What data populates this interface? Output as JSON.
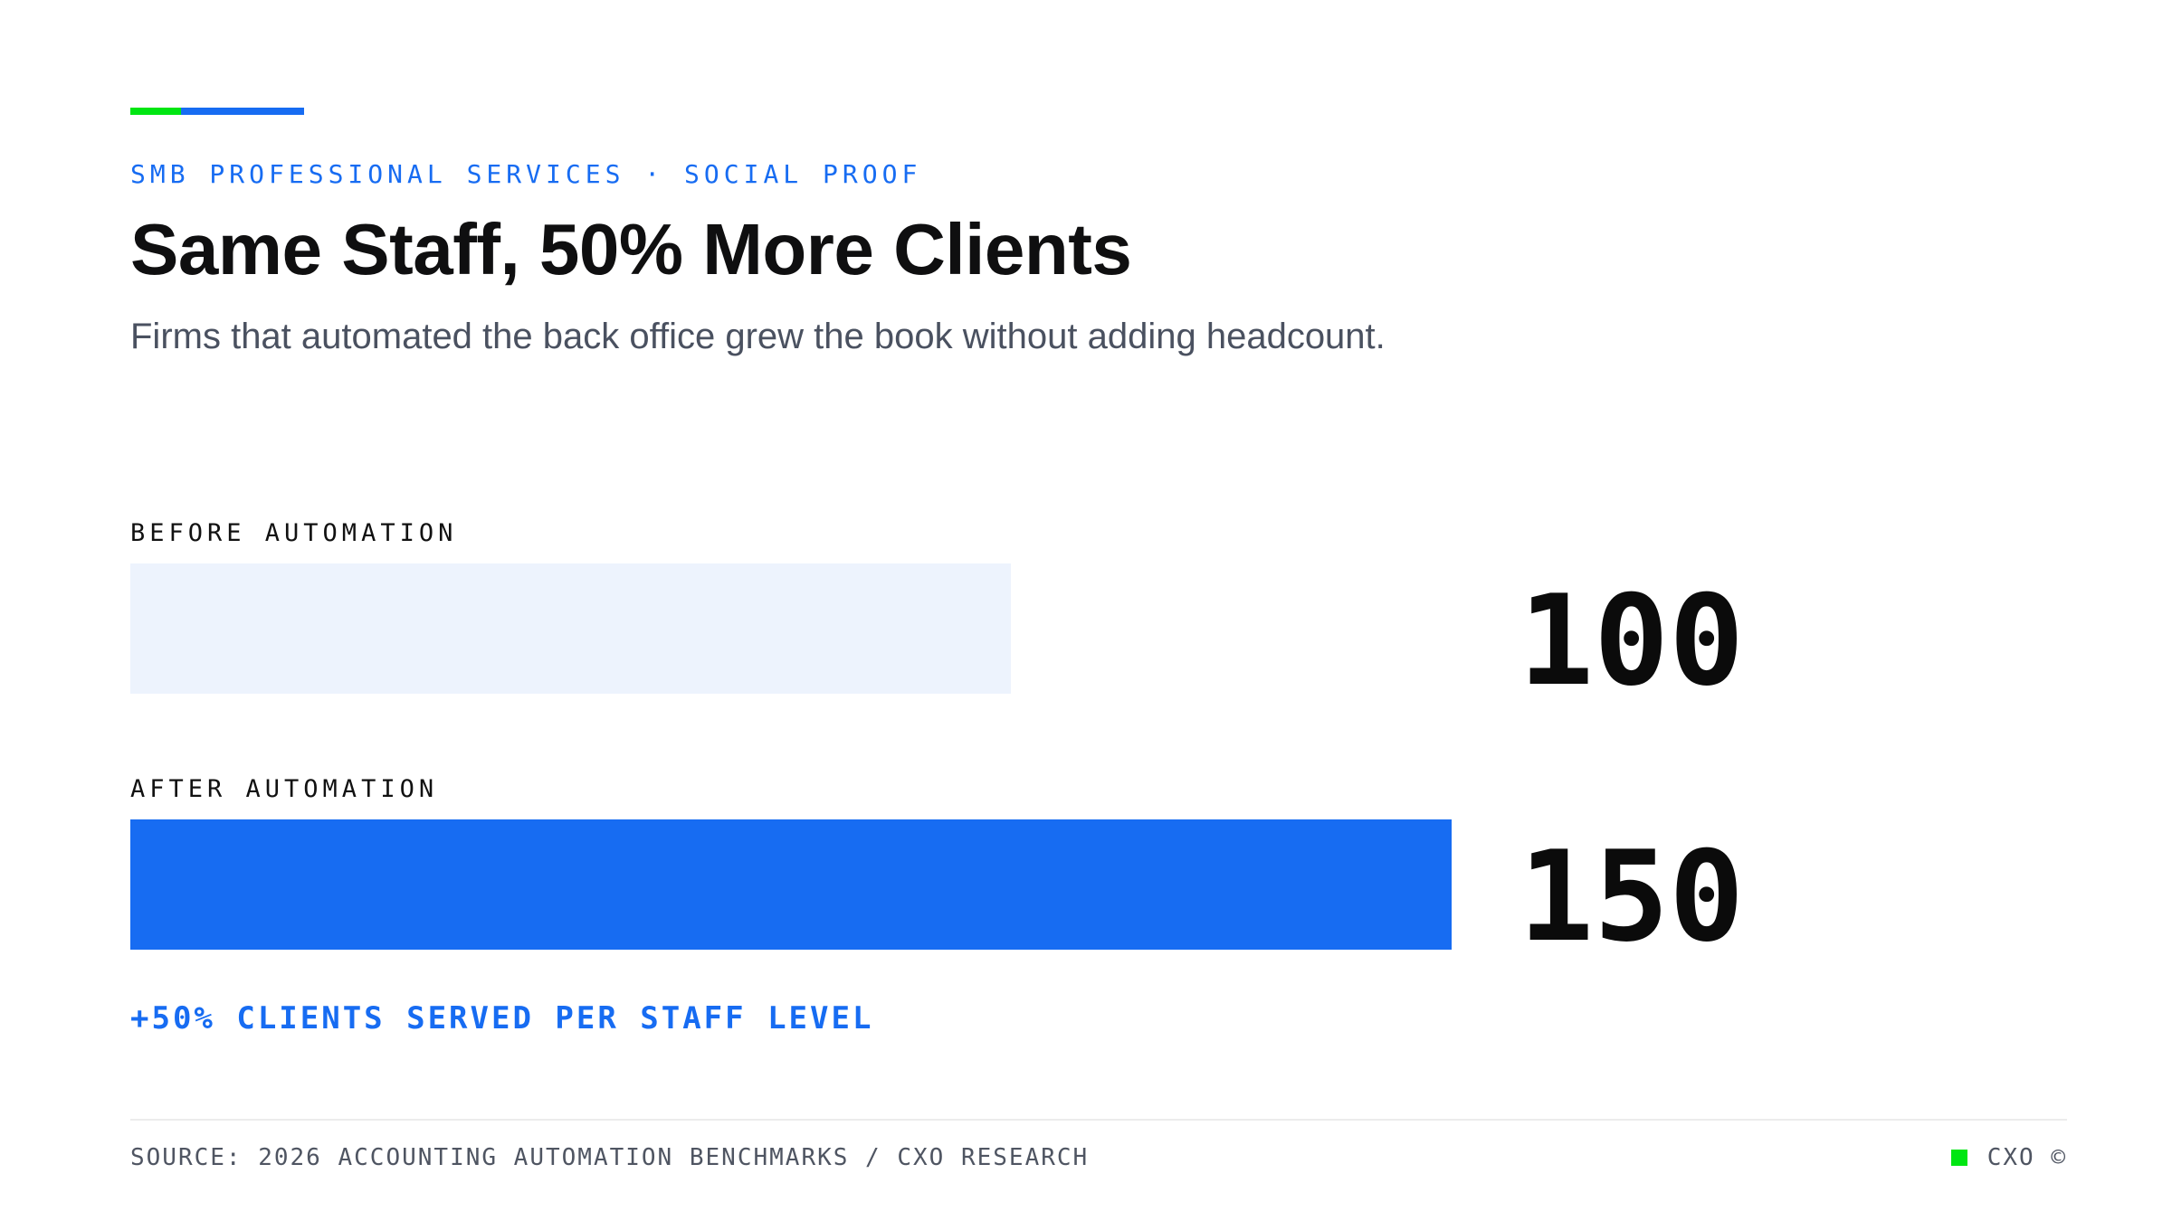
{
  "colors": {
    "accent_green": "#00e612",
    "accent_blue": "#176cf2",
    "bar_before": "#edf3fd",
    "bar_after": "#176cf2",
    "eyebrow_text": "#176cf2",
    "callout_text": "#176cf2"
  },
  "header": {
    "eyebrow": "SMB PROFESSIONAL SERVICES · SOCIAL PROOF"
  },
  "chart_data": {
    "type": "bar",
    "orientation": "horizontal",
    "title": "Same Staff, 50% More Clients",
    "subtitle": "Firms that automated the back office grew the book without adding headcount.",
    "categories": [
      "BEFORE AUTOMATION",
      "AFTER AUTOMATION"
    ],
    "values": [
      100,
      150
    ],
    "value_labels": [
      "100",
      "150"
    ],
    "xlim": [
      0,
      150
    ],
    "grid": false,
    "annotation": "+50% CLIENTS SERVED PER STAFF LEVEL"
  },
  "footer": {
    "source": "SOURCE: 2026 ACCOUNTING AUTOMATION BENCHMARKS / CXO RESEARCH",
    "brand": "CXO ©"
  }
}
